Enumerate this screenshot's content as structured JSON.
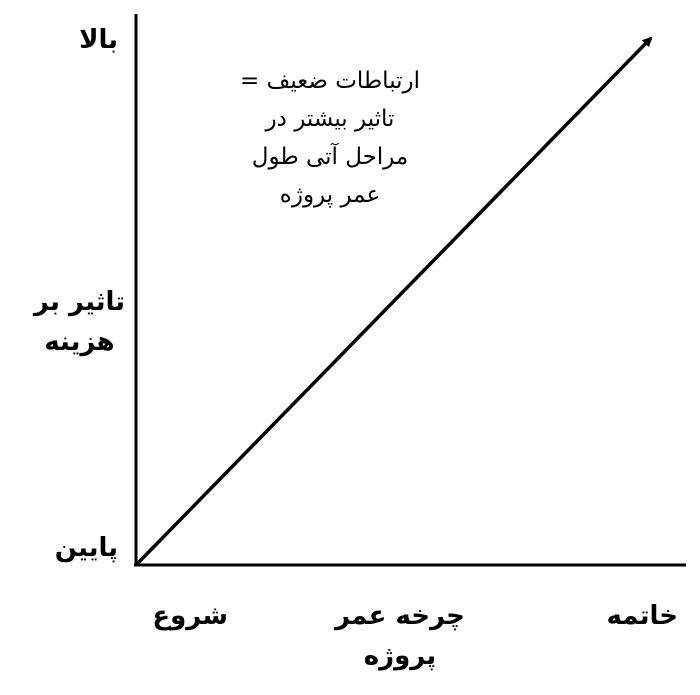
{
  "y_axis": {
    "top_label": "بالا",
    "title_line1": "تاثیر بر",
    "title_line2": "هزینه",
    "bottom_label": "پایین"
  },
  "x_axis": {
    "start_label": "شروع",
    "title_line1": "چرخه عمر",
    "title_line2": "پروژه",
    "end_label": "خاتمه"
  },
  "annotation": {
    "line1": "ارتباطات ضعیف =",
    "line2": "تاثیر بیشتر در",
    "line3": "مراحل آتی طول",
    "line4": "عمر پروژه"
  },
  "trend": "increasing"
}
